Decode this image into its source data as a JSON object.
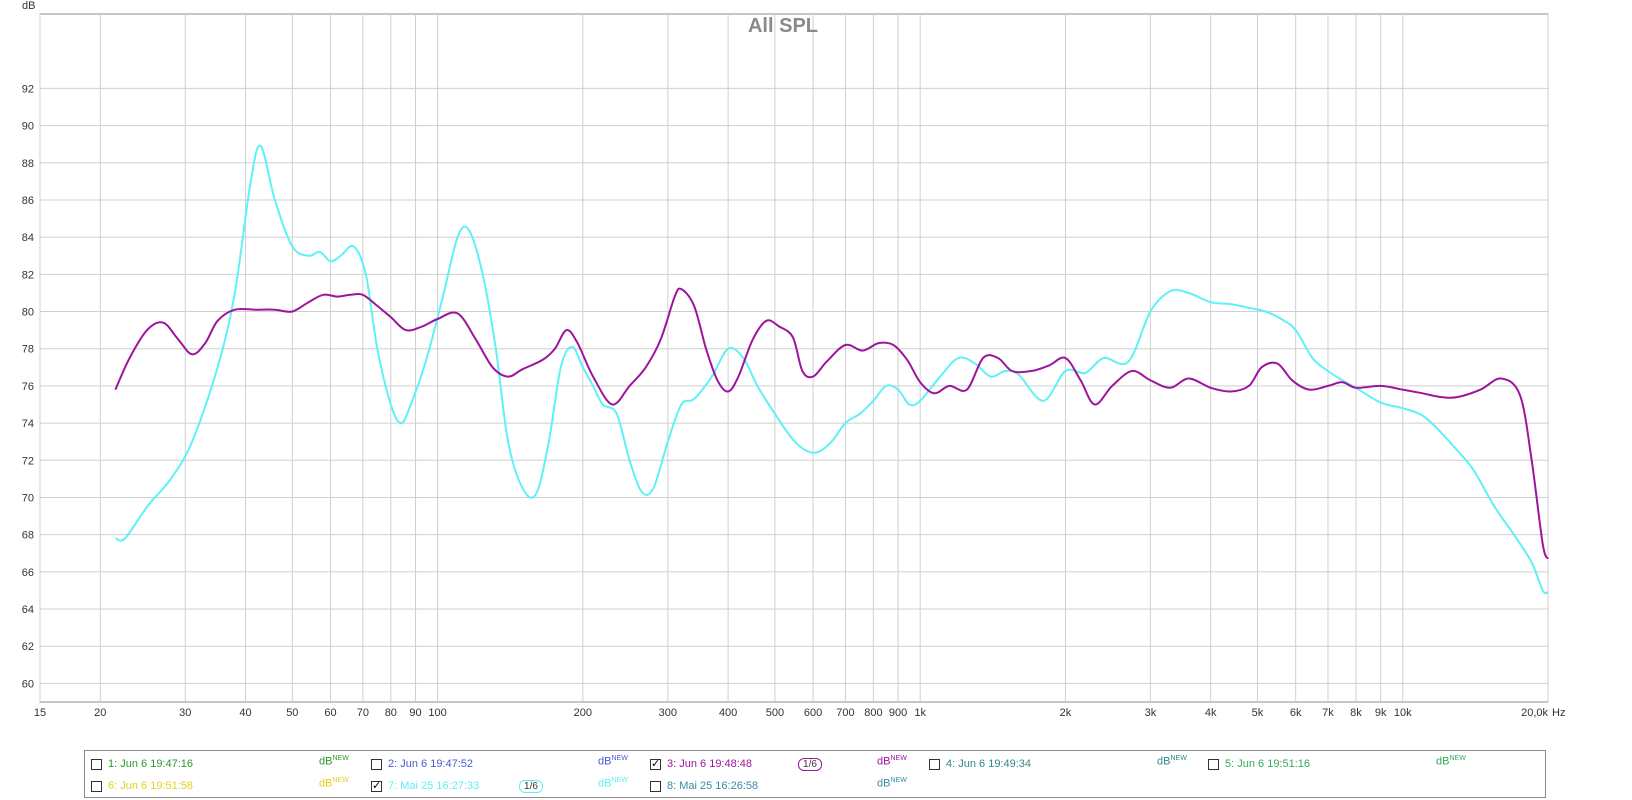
{
  "chart_data": {
    "type": "line",
    "title": "All SPL",
    "ylabel": "dB",
    "xunit": "Hz",
    "xscale": "log",
    "xlim": [
      15,
      20000
    ],
    "ylim": [
      59,
      96
    ],
    "grid": true,
    "y_ticks": [
      60,
      62,
      64,
      66,
      68,
      70,
      72,
      74,
      76,
      78,
      80,
      82,
      84,
      86,
      88,
      90,
      92
    ],
    "x_ticks": [
      {
        "v": 15,
        "label": "15"
      },
      {
        "v": 20,
        "label": "20"
      },
      {
        "v": 30,
        "label": "30"
      },
      {
        "v": 40,
        "label": "40"
      },
      {
        "v": 50,
        "label": "50"
      },
      {
        "v": 60,
        "label": "60"
      },
      {
        "v": 70,
        "label": "70"
      },
      {
        "v": 80,
        "label": "80"
      },
      {
        "v": 90,
        "label": "90"
      },
      {
        "v": 100,
        "label": "100"
      },
      {
        "v": 200,
        "label": "200"
      },
      {
        "v": 300,
        "label": "300"
      },
      {
        "v": 400,
        "label": "400"
      },
      {
        "v": 500,
        "label": "500"
      },
      {
        "v": 600,
        "label": "600"
      },
      {
        "v": 700,
        "label": "700"
      },
      {
        "v": 800,
        "label": "800"
      },
      {
        "v": 900,
        "label": "900"
      },
      {
        "v": 1000,
        "label": "1k"
      },
      {
        "v": 2000,
        "label": "2k"
      },
      {
        "v": 3000,
        "label": "3k"
      },
      {
        "v": 4000,
        "label": "4k"
      },
      {
        "v": 5000,
        "label": "5k"
      },
      {
        "v": 6000,
        "label": "6k"
      },
      {
        "v": 7000,
        "label": "7k"
      },
      {
        "v": 8000,
        "label": "8k"
      },
      {
        "v": 9000,
        "label": "9k"
      },
      {
        "v": 10000,
        "label": "10k"
      },
      {
        "v": 20000,
        "label": "20,0k"
      }
    ],
    "series": [
      {
        "name": "7: Mai 25 16:27:33",
        "color": "#5ef1f5",
        "points": [
          [
            21.5,
            67.8
          ],
          [
            22.5,
            67.8
          ],
          [
            25,
            69.5
          ],
          [
            28,
            71
          ],
          [
            31,
            73
          ],
          [
            35,
            77
          ],
          [
            38,
            81
          ],
          [
            41,
            87
          ],
          [
            43,
            88.9
          ],
          [
            46,
            86
          ],
          [
            50,
            83.5
          ],
          [
            54,
            83
          ],
          [
            57,
            83.2
          ],
          [
            60,
            82.7
          ],
          [
            63,
            83
          ],
          [
            67,
            83.5
          ],
          [
            71,
            82
          ],
          [
            75,
            78
          ],
          [
            80,
            75
          ],
          [
            84,
            74
          ],
          [
            88,
            75
          ],
          [
            95,
            77.5
          ],
          [
            103,
            81
          ],
          [
            110,
            84
          ],
          [
            116,
            84.4
          ],
          [
            124,
            82
          ],
          [
            132,
            78
          ],
          [
            140,
            73
          ],
          [
            150,
            70.5
          ],
          [
            160,
            70.2
          ],
          [
            170,
            73
          ],
          [
            180,
            77
          ],
          [
            190,
            78.1
          ],
          [
            200,
            77
          ],
          [
            210,
            76
          ],
          [
            220,
            75
          ],
          [
            235,
            74.5
          ],
          [
            250,
            72
          ],
          [
            265,
            70.3
          ],
          [
            280,
            70.5
          ],
          [
            300,
            73
          ],
          [
            320,
            75
          ],
          [
            340,
            75.3
          ],
          [
            370,
            76.5
          ],
          [
            400,
            78
          ],
          [
            430,
            77.5
          ],
          [
            460,
            76
          ],
          [
            500,
            74.5
          ],
          [
            550,
            73
          ],
          [
            600,
            72.4
          ],
          [
            650,
            72.9
          ],
          [
            700,
            74
          ],
          [
            750,
            74.5
          ],
          [
            800,
            75.2
          ],
          [
            850,
            76
          ],
          [
            900,
            75.8
          ],
          [
            950,
            75
          ],
          [
            1000,
            75.2
          ],
          [
            1100,
            76.5
          ],
          [
            1200,
            77.5
          ],
          [
            1300,
            77.2
          ],
          [
            1400,
            76.5
          ],
          [
            1500,
            76.8
          ],
          [
            1600,
            76.6
          ],
          [
            1800,
            75.2
          ],
          [
            2000,
            76.8
          ],
          [
            2200,
            76.7
          ],
          [
            2400,
            77.5
          ],
          [
            2700,
            77.3
          ],
          [
            3000,
            80
          ],
          [
            3300,
            81.1
          ],
          [
            3600,
            81
          ],
          [
            4000,
            80.5
          ],
          [
            4400,
            80.4
          ],
          [
            4800,
            80.2
          ],
          [
            5200,
            80
          ],
          [
            5600,
            79.6
          ],
          [
            6000,
            79
          ],
          [
            6500,
            77.5
          ],
          [
            7000,
            76.8
          ],
          [
            7500,
            76.3
          ],
          [
            8000,
            75.9
          ],
          [
            9000,
            75.1
          ],
          [
            10000,
            74.8
          ],
          [
            11000,
            74.4
          ],
          [
            12000,
            73.5
          ],
          [
            13000,
            72.5
          ],
          [
            14000,
            71.5
          ],
          [
            15500,
            69.5
          ],
          [
            17000,
            68
          ],
          [
            18500,
            66.5
          ],
          [
            19500,
            65
          ],
          [
            20000,
            64.9
          ]
        ]
      },
      {
        "name": "3: Jun 6 19:48:48",
        "color": "#9c159c",
        "points": [
          [
            21.5,
            75.8
          ],
          [
            23,
            77.5
          ],
          [
            25,
            79
          ],
          [
            27,
            79.4
          ],
          [
            29,
            78.5
          ],
          [
            31,
            77.7
          ],
          [
            33,
            78.3
          ],
          [
            35,
            79.5
          ],
          [
            38,
            80.1
          ],
          [
            42,
            80.1
          ],
          [
            46,
            80.1
          ],
          [
            50,
            80
          ],
          [
            54,
            80.5
          ],
          [
            58,
            80.9
          ],
          [
            62,
            80.8
          ],
          [
            66,
            80.9
          ],
          [
            70,
            80.9
          ],
          [
            75,
            80.3
          ],
          [
            80,
            79.7
          ],
          [
            86,
            79
          ],
          [
            93,
            79.2
          ],
          [
            100,
            79.6
          ],
          [
            110,
            79.9
          ],
          [
            120,
            78.5
          ],
          [
            130,
            77
          ],
          [
            140,
            76.5
          ],
          [
            150,
            76.9
          ],
          [
            165,
            77.4
          ],
          [
            175,
            78
          ],
          [
            185,
            79
          ],
          [
            195,
            78.3
          ],
          [
            210,
            76.5
          ],
          [
            230,
            75
          ],
          [
            250,
            76
          ],
          [
            270,
            77
          ],
          [
            290,
            78.5
          ],
          [
            310,
            80.8
          ],
          [
            320,
            81.2
          ],
          [
            340,
            80.3
          ],
          [
            360,
            78
          ],
          [
            380,
            76.3
          ],
          [
            400,
            75.7
          ],
          [
            420,
            76.5
          ],
          [
            450,
            78.5
          ],
          [
            480,
            79.5
          ],
          [
            510,
            79.2
          ],
          [
            545,
            78.6
          ],
          [
            570,
            76.8
          ],
          [
            600,
            76.5
          ],
          [
            640,
            77.3
          ],
          [
            700,
            78.2
          ],
          [
            760,
            77.9
          ],
          [
            820,
            78.3
          ],
          [
            880,
            78.2
          ],
          [
            940,
            77.4
          ],
          [
            1000,
            76.2
          ],
          [
            1070,
            75.6
          ],
          [
            1150,
            76
          ],
          [
            1250,
            75.8
          ],
          [
            1350,
            77.5
          ],
          [
            1450,
            77.5
          ],
          [
            1550,
            76.8
          ],
          [
            1700,
            76.8
          ],
          [
            1850,
            77.1
          ],
          [
            2000,
            77.5
          ],
          [
            2150,
            76.3
          ],
          [
            2300,
            75
          ],
          [
            2500,
            76
          ],
          [
            2750,
            76.8
          ],
          [
            3000,
            76.3
          ],
          [
            3300,
            75.9
          ],
          [
            3600,
            76.4
          ],
          [
            4000,
            75.9
          ],
          [
            4400,
            75.7
          ],
          [
            4800,
            76
          ],
          [
            5100,
            77
          ],
          [
            5500,
            77.2
          ],
          [
            5900,
            76.3
          ],
          [
            6400,
            75.8
          ],
          [
            7000,
            76
          ],
          [
            7500,
            76.2
          ],
          [
            8000,
            75.9
          ],
          [
            9000,
            76
          ],
          [
            10000,
            75.8
          ],
          [
            11000,
            75.6
          ],
          [
            12000,
            75.4
          ],
          [
            13000,
            75.4
          ],
          [
            14500,
            75.8
          ],
          [
            16000,
            76.4
          ],
          [
            17500,
            75.5
          ],
          [
            18500,
            72
          ],
          [
            19500,
            67.5
          ],
          [
            20000,
            66.7
          ]
        ]
      }
    ]
  },
  "legend": {
    "items": [
      {
        "label": "1: Jun 6 19:47:16",
        "color": "#2a9a2a",
        "checked": false
      },
      {
        "label": "2: Jun 6 19:47:52",
        "color": "#4a5ad0",
        "checked": false
      },
      {
        "label": "3: Jun 6 19:48:48",
        "color": "#9c159c",
        "checked": true
      },
      {
        "label": "4: Jun 6 19:49:34",
        "color": "#2a8a8a",
        "checked": false
      },
      {
        "label": "5: Jun 6 19:51:16",
        "color": "#33aa55",
        "checked": false
      },
      {
        "label": "6: Jun 6 19:51:58",
        "color": "#e8d020",
        "checked": false
      },
      {
        "label": "7: Mai 25 16:27:33",
        "color": "#5ef1f5",
        "checked": true
      },
      {
        "label": "8: Mai 25 16:26:58",
        "color": "#3a8aa8",
        "checked": false
      }
    ],
    "unit_label": "dB",
    "unit_super": "NEW",
    "smoothing": "1/6"
  }
}
